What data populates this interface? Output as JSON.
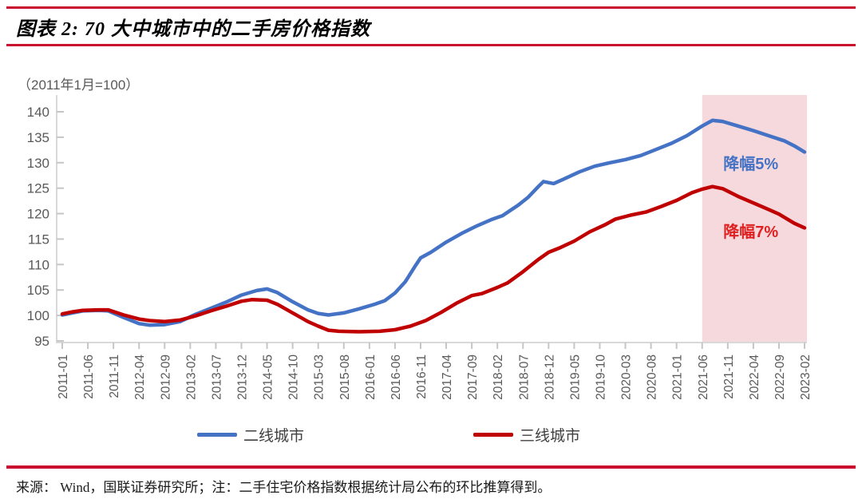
{
  "header": {
    "title": "图表 2: 70 大中城市中的二手房价格指数"
  },
  "chart_data": {
    "type": "line",
    "title": "70 大中城市中的二手房价格指数",
    "unit_note": "（2011年1月=100）",
    "ylim": [
      95,
      140
    ],
    "y_ticks": [
      95,
      100,
      105,
      110,
      115,
      120,
      125,
      130,
      135,
      140
    ],
    "grid": false,
    "legend_position": "bottom",
    "x_label_step_months": 5,
    "x_tick_labels": [
      "2011-01",
      "2011-06",
      "2011-11",
      "2012-04",
      "2012-09",
      "2013-02",
      "2013-07",
      "2013-12",
      "2014-05",
      "2014-10",
      "2015-03",
      "2015-08",
      "2016-01",
      "2016-06",
      "2016-11",
      "2017-04",
      "2017-09",
      "2018-02",
      "2018-07",
      "2018-12",
      "2019-05",
      "2019-10",
      "2020-03",
      "2020-08",
      "2021-01",
      "2021-06",
      "2021-11",
      "2022-04",
      "2022-09",
      "2023-02"
    ],
    "series": [
      {
        "name": "二线城市",
        "color": "#4472C4",
        "points": [
          [
            0,
            100.1
          ],
          [
            2,
            100.5
          ],
          [
            4,
            100.9
          ],
          [
            7,
            101.0
          ],
          [
            9,
            100.9
          ],
          [
            12,
            99.6
          ],
          [
            15,
            98.4
          ],
          [
            17,
            98.1
          ],
          [
            20,
            98.2
          ],
          [
            23,
            98.8
          ],
          [
            26,
            100.2
          ],
          [
            29,
            101.4
          ],
          [
            32,
            102.6
          ],
          [
            35,
            104.0
          ],
          [
            38,
            104.9
          ],
          [
            40,
            105.2
          ],
          [
            42,
            104.5
          ],
          [
            45,
            102.7
          ],
          [
            48,
            101.1
          ],
          [
            50,
            100.4
          ],
          [
            52,
            100.1
          ],
          [
            55,
            100.5
          ],
          [
            58,
            101.3
          ],
          [
            61,
            102.2
          ],
          [
            63,
            102.9
          ],
          [
            65,
            104.4
          ],
          [
            67,
            106.6
          ],
          [
            69,
            109.8
          ],
          [
            70,
            111.3
          ],
          [
            72,
            112.4
          ],
          [
            75,
            114.4
          ],
          [
            78,
            116.1
          ],
          [
            81,
            117.6
          ],
          [
            84,
            118.9
          ],
          [
            86,
            119.6
          ],
          [
            89,
            121.6
          ],
          [
            91,
            123.2
          ],
          [
            93,
            125.3
          ],
          [
            94,
            126.3
          ],
          [
            96,
            125.9
          ],
          [
            98,
            126.8
          ],
          [
            101,
            128.2
          ],
          [
            104,
            129.3
          ],
          [
            107,
            130.0
          ],
          [
            110,
            130.6
          ],
          [
            113,
            131.4
          ],
          [
            116,
            132.6
          ],
          [
            119,
            133.8
          ],
          [
            122,
            135.3
          ],
          [
            125,
            137.2
          ],
          [
            127,
            138.3
          ],
          [
            129,
            138.1
          ],
          [
            132,
            137.2
          ],
          [
            135,
            136.3
          ],
          [
            138,
            135.3
          ],
          [
            141,
            134.3
          ],
          [
            143,
            133.3
          ],
          [
            145,
            132.1
          ]
        ]
      },
      {
        "name": "三线城市",
        "color": "#C00000",
        "points": [
          [
            0,
            100.3
          ],
          [
            2,
            100.7
          ],
          [
            4,
            101.0
          ],
          [
            7,
            101.1
          ],
          [
            9,
            101.1
          ],
          [
            12,
            100.1
          ],
          [
            15,
            99.3
          ],
          [
            17,
            99.0
          ],
          [
            20,
            98.8
          ],
          [
            23,
            99.1
          ],
          [
            26,
            99.9
          ],
          [
            29,
            100.9
          ],
          [
            32,
            101.8
          ],
          [
            35,
            102.8
          ],
          [
            37,
            103.1
          ],
          [
            40,
            103.0
          ],
          [
            42,
            102.2
          ],
          [
            45,
            100.5
          ],
          [
            48,
            98.8
          ],
          [
            50,
            97.9
          ],
          [
            52,
            97.1
          ],
          [
            54,
            96.9
          ],
          [
            58,
            96.8
          ],
          [
            62,
            96.9
          ],
          [
            65,
            97.2
          ],
          [
            68,
            97.9
          ],
          [
            71,
            99.0
          ],
          [
            74,
            100.6
          ],
          [
            77,
            102.4
          ],
          [
            80,
            103.9
          ],
          [
            82,
            104.3
          ],
          [
            85,
            105.5
          ],
          [
            87,
            106.4
          ],
          [
            90,
            108.6
          ],
          [
            93,
            111.0
          ],
          [
            95,
            112.4
          ],
          [
            97,
            113.2
          ],
          [
            100,
            114.6
          ],
          [
            103,
            116.4
          ],
          [
            106,
            117.8
          ],
          [
            108,
            118.9
          ],
          [
            111,
            119.7
          ],
          [
            114,
            120.3
          ],
          [
            117,
            121.4
          ],
          [
            120,
            122.6
          ],
          [
            123,
            124.1
          ],
          [
            125,
            124.8
          ],
          [
            127,
            125.3
          ],
          [
            129,
            124.9
          ],
          [
            132,
            123.4
          ],
          [
            135,
            122.1
          ],
          [
            138,
            120.8
          ],
          [
            140,
            119.9
          ],
          [
            143,
            118.1
          ],
          [
            145,
            117.2
          ]
        ]
      }
    ],
    "highlight_region": {
      "start_label": "2021-06",
      "start_month": 125,
      "end_month": 145,
      "color": "#F5D9DD"
    },
    "annotations": [
      {
        "name": "decline-5pct",
        "text": "降幅5%",
        "color": "#4472C4",
        "month": 134.5,
        "value": 129.8
      },
      {
        "name": "decline-7pct",
        "text": "降幅7%",
        "color": "#E02020",
        "month": 134.5,
        "value": 116.5
      }
    ]
  },
  "legend": {
    "items": [
      {
        "label": "二线城市",
        "color": "#4472C4"
      },
      {
        "label": "三线城市",
        "color": "#C00000"
      }
    ]
  },
  "footer": {
    "text": "来源：  Wind，国联证券研究所；注：二手住宅价格指数根据统计局公布的环比推算得到。"
  },
  "colors": {
    "rule_red": "#C8102E",
    "axis_line": "#D9D9D9",
    "tick_mark": "#C6C6C6",
    "axis_label": "#595959",
    "blue_line": "#4472C4",
    "red_line": "#C00000",
    "highlight_fill": "#F5D9DD"
  }
}
